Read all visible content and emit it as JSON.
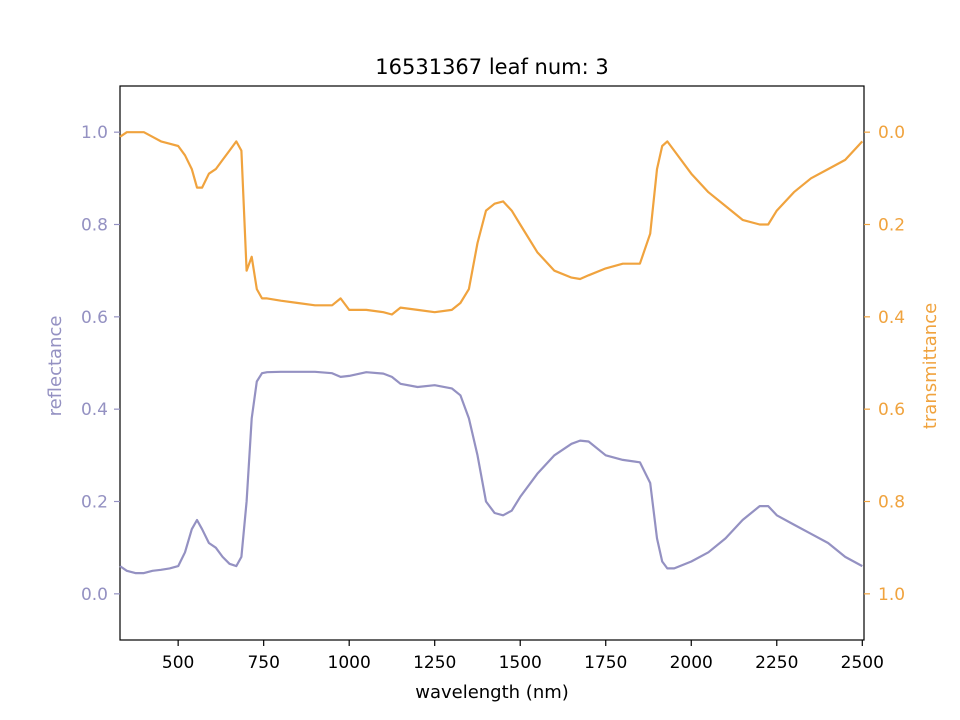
{
  "chart_data": {
    "type": "line",
    "title": "16531367 leaf num: 3",
    "xlabel": "wavelength (nm)",
    "ylabel": "reflectance",
    "ylabel_right": "transmittance",
    "xlim": [
      330,
      2505
    ],
    "ylim": [
      -0.1,
      1.1
    ],
    "ylim_right": [
      1.1,
      -0.1
    ],
    "right_axis_inverted": true,
    "x_ticks": [
      "500",
      "750",
      "1000",
      "1250",
      "1500",
      "1750",
      "2000",
      "2250",
      "2500"
    ],
    "y_ticks": [
      "0.0",
      "0.2",
      "0.4",
      "0.6",
      "0.8",
      "1.0"
    ],
    "y_ticks_right": [
      "0.0",
      "0.2",
      "0.4",
      "0.6",
      "0.8",
      "1.0"
    ],
    "grid": false,
    "legend": "none",
    "x": [
      330,
      350,
      375,
      400,
      425,
      450,
      475,
      500,
      520,
      540,
      555,
      570,
      590,
      610,
      630,
      650,
      670,
      685,
      700,
      715,
      730,
      745,
      760,
      800,
      850,
      900,
      950,
      975,
      1000,
      1050,
      1100,
      1125,
      1150,
      1200,
      1250,
      1300,
      1325,
      1350,
      1375,
      1400,
      1425,
      1450,
      1475,
      1500,
      1550,
      1600,
      1650,
      1675,
      1700,
      1750,
      1800,
      1850,
      1880,
      1900,
      1915,
      1930,
      1950,
      2000,
      2050,
      2100,
      2150,
      2200,
      2225,
      2250,
      2300,
      2350,
      2400,
      2450,
      2500
    ],
    "series": [
      {
        "axis": "left",
        "color": "#9491c2",
        "values": [
          0.06,
          0.05,
          0.045,
          0.045,
          0.05,
          0.052,
          0.055,
          0.06,
          0.09,
          0.14,
          0.16,
          0.14,
          0.11,
          0.1,
          0.08,
          0.065,
          0.06,
          0.08,
          0.2,
          0.38,
          0.46,
          0.478,
          0.48,
          0.481,
          0.481,
          0.481,
          0.478,
          0.47,
          0.472,
          0.48,
          0.477,
          0.47,
          0.455,
          0.448,
          0.452,
          0.445,
          0.43,
          0.38,
          0.3,
          0.2,
          0.175,
          0.17,
          0.18,
          0.21,
          0.26,
          0.3,
          0.325,
          0.332,
          0.33,
          0.3,
          0.29,
          0.285,
          0.24,
          0.12,
          0.07,
          0.055,
          0.055,
          0.07,
          0.09,
          0.12,
          0.16,
          0.19,
          0.19,
          0.17,
          0.15,
          0.13,
          0.11,
          0.08,
          0.06
        ]
      },
      {
        "axis": "right",
        "color": "#f0a33e",
        "values": [
          0.01,
          0.0,
          0.0,
          0.0,
          0.01,
          0.02,
          0.025,
          0.03,
          0.05,
          0.08,
          0.12,
          0.12,
          0.09,
          0.08,
          0.06,
          0.04,
          0.02,
          0.04,
          0.3,
          0.27,
          0.34,
          0.36,
          0.36,
          0.365,
          0.37,
          0.375,
          0.375,
          0.36,
          0.385,
          0.385,
          0.39,
          0.395,
          0.38,
          0.385,
          0.39,
          0.385,
          0.37,
          0.34,
          0.24,
          0.17,
          0.155,
          0.15,
          0.17,
          0.2,
          0.26,
          0.3,
          0.315,
          0.318,
          0.31,
          0.295,
          0.285,
          0.285,
          0.22,
          0.08,
          0.03,
          0.02,
          0.04,
          0.09,
          0.13,
          0.16,
          0.19,
          0.2,
          0.2,
          0.17,
          0.13,
          0.1,
          0.08,
          0.06,
          0.02
        ]
      }
    ]
  }
}
